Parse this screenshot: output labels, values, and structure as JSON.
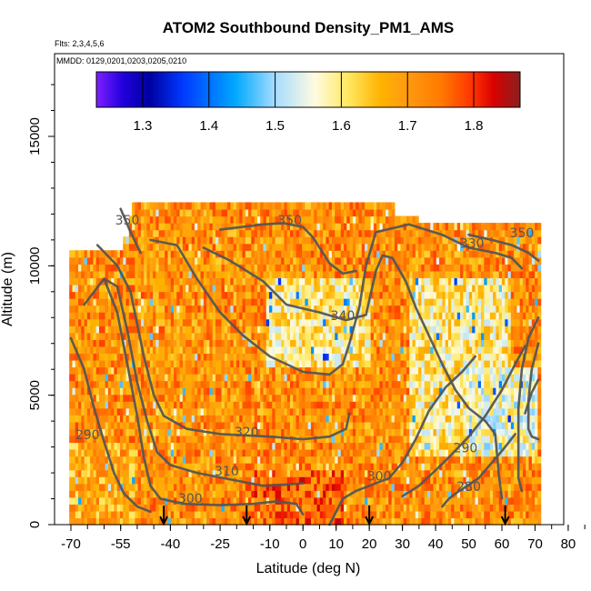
{
  "chart_data": {
    "type": "heatmap",
    "title": "ATOM2 Southbound Density_PM1_AMS",
    "flights_note": "Flts: 2,3,4,5,6",
    "dates_note": "MMDD: 0129,0201,0203,0205,0210",
    "xlabel": "Latitude (deg N)",
    "ylabel": "Altitude (m)",
    "xlim": [
      -70,
      85
    ],
    "ylim": [
      0,
      17500
    ],
    "xticks": [
      -70,
      -55,
      -40,
      -25,
      -10,
      0,
      10,
      20,
      30,
      40,
      50,
      60,
      70,
      80
    ],
    "yticks": [
      0,
      5000,
      10000,
      15000
    ],
    "colorbar": {
      "min": 1.23,
      "max": 1.87,
      "ticks": [
        1.3,
        1.4,
        1.5,
        1.6,
        1.7,
        1.8
      ],
      "stops": [
        {
          "v": 1.23,
          "c": "#7f1fff"
        },
        {
          "v": 1.27,
          "c": "#2000dd"
        },
        {
          "v": 1.31,
          "c": "#0000a0"
        },
        {
          "v": 1.36,
          "c": "#0038ff"
        },
        {
          "v": 1.44,
          "c": "#00a8ff"
        },
        {
          "v": 1.5,
          "c": "#a6dcff"
        },
        {
          "v": 1.56,
          "c": "#fffbe0"
        },
        {
          "v": 1.61,
          "c": "#ffe860"
        },
        {
          "v": 1.66,
          "c": "#ffb200"
        },
        {
          "v": 1.7,
          "c": "#ff9a10"
        },
        {
          "v": 1.75,
          "c": "#ff7a00"
        },
        {
          "v": 1.8,
          "c": "#ff3000"
        },
        {
          "v": 1.83,
          "c": "#d80000"
        },
        {
          "v": 1.87,
          "c": "#8a2020"
        }
      ]
    },
    "flight_markers_lat": [
      -42,
      -17,
      20,
      61
    ],
    "contours": [
      {
        "label": "290",
        "label_at": [
          -65,
          3300
        ],
        "points": [
          [
            -70,
            7200
          ],
          [
            -66,
            6000
          ],
          [
            -63,
            4500
          ],
          [
            -60,
            3200
          ],
          [
            -57,
            2000
          ],
          [
            -54,
            1200
          ],
          [
            -50,
            700
          ],
          [
            -46,
            500
          ]
        ]
      },
      {
        "label": "300",
        "label_at": [
          -34,
          850
        ],
        "points": [
          [
            -60,
            9500
          ],
          [
            -56,
            8200
          ],
          [
            -53,
            6200
          ],
          [
            -50,
            4200
          ],
          [
            -48,
            2600
          ],
          [
            -46,
            1500
          ],
          [
            -43,
            1000
          ],
          [
            -36,
            800
          ],
          [
            -25,
            750
          ],
          [
            -15,
            800
          ],
          [
            -8,
            900
          ],
          [
            -2,
            800
          ],
          [
            0,
            400
          ]
        ]
      },
      {
        "label": "310",
        "label_at": [
          -23,
          1900
        ],
        "points": [
          [
            -66,
            8500
          ],
          [
            -60,
            9500
          ],
          [
            -56,
            9200
          ],
          [
            -53,
            7500
          ],
          [
            -50,
            5500
          ],
          [
            -47,
            4000
          ],
          [
            -44,
            2800
          ],
          [
            -40,
            2300
          ],
          [
            -32,
            2000
          ],
          [
            -20,
            1700
          ],
          [
            -12,
            1500
          ],
          [
            -5,
            1550
          ],
          [
            0,
            1600
          ]
        ]
      },
      {
        "label": "320",
        "label_at": [
          -17,
          3400
        ],
        "points": [
          [
            -62,
            10800
          ],
          [
            -56,
            10000
          ],
          [
            -52,
            9000
          ],
          [
            -48,
            6500
          ],
          [
            -45,
            5000
          ],
          [
            -42,
            4200
          ],
          [
            -35,
            3700
          ],
          [
            -25,
            3500
          ],
          [
            -10,
            3400
          ],
          [
            0,
            3300
          ],
          [
            8,
            3400
          ],
          [
            13,
            3700
          ],
          [
            14,
            4300
          ]
        ]
      },
      {
        "label": "330",
        "label_at": [
          51,
          10700
        ],
        "points": [
          [
            -46,
            11000
          ],
          [
            -38,
            10800
          ],
          [
            -32,
            9500
          ],
          [
            -25,
            8200
          ],
          [
            -18,
            7300
          ],
          [
            -10,
            6500
          ],
          [
            0,
            5900
          ],
          [
            8,
            5800
          ],
          [
            12,
            6200
          ],
          [
            14,
            7000
          ],
          [
            17,
            8400
          ],
          [
            19,
            10000
          ],
          [
            22,
            11300
          ],
          [
            32,
            11600
          ],
          [
            42,
            11200
          ],
          [
            50,
            10700
          ],
          [
            58,
            10500
          ],
          [
            63,
            10300
          ],
          [
            66,
            9900
          ]
        ]
      },
      {
        "label": "340",
        "label_at": [
          12,
          7900
        ],
        "points": [
          [
            -30,
            10700
          ],
          [
            -22,
            10200
          ],
          [
            -12,
            9400
          ],
          [
            -5,
            8500
          ],
          [
            5,
            8200
          ],
          [
            13,
            7900
          ],
          [
            19,
            8100
          ],
          [
            22,
            9800
          ],
          [
            24,
            10400
          ],
          [
            27,
            10300
          ],
          [
            31,
            9400
          ],
          [
            34,
            8400
          ],
          [
            38,
            7300
          ],
          [
            42,
            6200
          ],
          [
            46,
            5200
          ],
          [
            50,
            4500
          ],
          [
            55,
            4000
          ],
          [
            58,
            3500
          ],
          [
            59,
            2000
          ],
          [
            60,
            1000
          ]
        ]
      },
      {
        "label": "350",
        "label_at": [
          -4,
          11600
        ],
        "points": [
          [
            -25,
            11400
          ],
          [
            -12,
            11600
          ],
          [
            -6,
            11650
          ],
          [
            0,
            11500
          ],
          [
            3,
            11100
          ],
          [
            5,
            10700
          ],
          [
            8,
            10100
          ],
          [
            12,
            9700
          ],
          [
            16,
            9800
          ]
        ]
      },
      {
        "label": "350",
        "label_at": [
          -53,
          11600
        ],
        "points": [
          [
            -55,
            12200
          ],
          [
            -52,
            11300
          ],
          [
            -49,
            10500
          ]
        ]
      },
      {
        "label": "350",
        "label_at": [
          66,
          11100
        ],
        "points": [
          [
            50,
            11200
          ],
          [
            57,
            11000
          ],
          [
            63,
            10800
          ],
          [
            68,
            10500
          ],
          [
            71,
            10200
          ]
        ]
      },
      {
        "label": "",
        "label_at": null,
        "points": [
          [
            71,
            8000
          ],
          [
            68,
            7200
          ],
          [
            66,
            6000
          ],
          [
            65,
            4500
          ],
          [
            65,
            3000
          ],
          [
            65,
            1800
          ],
          [
            66,
            1300
          ]
        ]
      },
      {
        "label": "",
        "label_at": null,
        "points": [
          [
            71,
            7000
          ],
          [
            69,
            6000
          ],
          [
            68,
            4800
          ],
          [
            68,
            3700
          ],
          [
            69,
            3400
          ],
          [
            71,
            3300
          ]
        ]
      },
      {
        "label": "",
        "label_at": null,
        "points": [
          [
            71,
            5600
          ],
          [
            69,
            5100
          ],
          [
            67,
            4300
          ]
        ]
      },
      {
        "label": "290",
        "label_at": [
          49,
          2800
        ],
        "points": [
          [
            30,
            1100
          ],
          [
            35,
            1500
          ],
          [
            40,
            2100
          ],
          [
            44,
            2600
          ],
          [
            50,
            3400
          ],
          [
            55,
            4200
          ],
          [
            60,
            5200
          ],
          [
            64,
            6200
          ],
          [
            67,
            6900
          ]
        ]
      },
      {
        "label": "280",
        "label_at": [
          50,
          1300
        ],
        "points": [
          [
            42,
            700
          ],
          [
            44,
            1000
          ],
          [
            46,
            1200
          ],
          [
            53,
            1800
          ],
          [
            57,
            2400
          ],
          [
            61,
            3000
          ],
          [
            64,
            3500
          ]
        ]
      },
      {
        "label": "300",
        "label_at": [
          23,
          1700
        ],
        "points": [
          [
            8,
            0
          ],
          [
            10,
            500
          ],
          [
            12,
            1000
          ],
          [
            16,
            1300
          ],
          [
            20,
            1500
          ],
          [
            26,
            1800
          ],
          [
            30,
            2400
          ],
          [
            34,
            3300
          ],
          [
            38,
            4400
          ],
          [
            43,
            5300
          ],
          [
            48,
            5900
          ],
          [
            52,
            6500
          ]
        ]
      }
    ],
    "contour_labels": [
      "290",
      "300",
      "310",
      "320",
      "330",
      "340",
      "350",
      "350",
      "350",
      "290",
      "280",
      "300"
    ]
  }
}
